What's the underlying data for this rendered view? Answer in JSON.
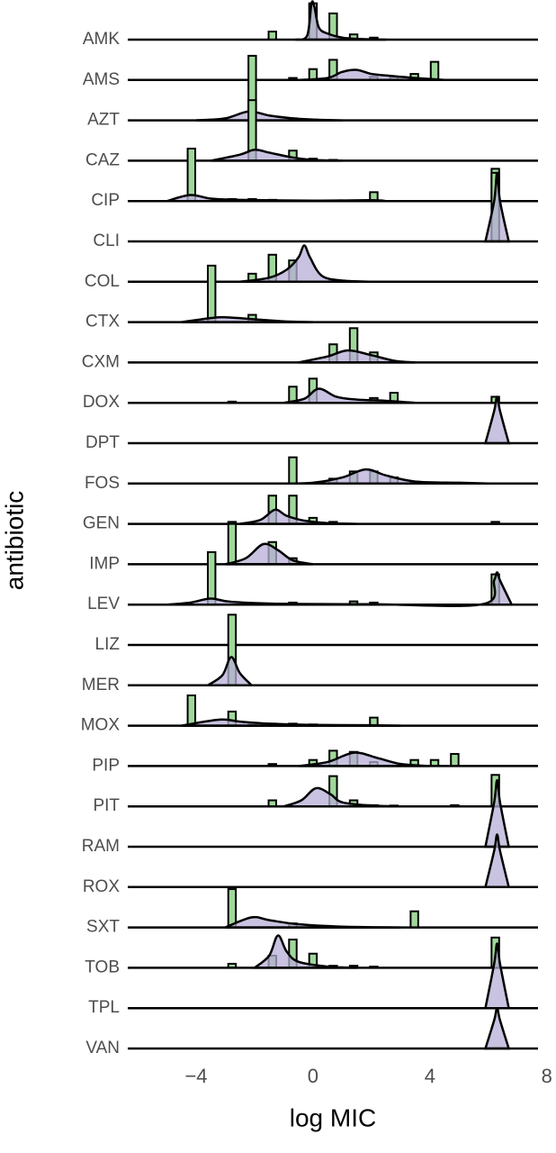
{
  "chart_data": {
    "type": "ridgeline",
    "x_label": "log MIC",
    "y_label": "antibiotic",
    "xlim": [
      -6.34,
      7.7
    ],
    "xticks": [
      {
        "value": -4,
        "label": "−4"
      },
      0,
      4,
      8
    ],
    "bar_color": "#9fd89a",
    "density_color": "#b7aed6",
    "rows": [
      {
        "name": "AMK",
        "bars": {
          "x": [
            -1.39,
            0,
            0.69,
            1.39,
            2.08
          ],
          "values": [
            0.2,
            0.9,
            0.65,
            0.13,
            0.05
          ]
        },
        "density": {
          "x": [
            -0.6,
            -0.2,
            -0.05,
            0.05,
            0.2,
            0.5,
            1,
            1.5,
            2.5
          ],
          "values": [
            0,
            0.1,
            0.9,
            0.8,
            0.3,
            0.15,
            0.05,
            0.02,
            0
          ]
        }
      },
      {
        "name": "AMS",
        "bars": {
          "x": [
            -0.69,
            0,
            0.69,
            2.08,
            2.77,
            3.47,
            4.16
          ],
          "values": [
            0.05,
            0.27,
            0.5,
            0.08,
            0.08,
            0.15,
            0.45
          ]
        },
        "density": {
          "x": [
            -0.5,
            0.5,
            1,
            1.5,
            2,
            2.7,
            3.5,
            4.5
          ],
          "values": [
            0,
            0.05,
            0.2,
            0.25,
            0.15,
            0.1,
            0.05,
            0
          ]
        }
      },
      {
        "name": "AZT",
        "bars": {
          "x": [
            -2.08,
            -0.69,
            0
          ],
          "values": [
            1.6,
            0.05,
            0.02
          ]
        },
        "density": {
          "x": [
            -4,
            -3,
            -2.2,
            -1.5,
            -0.7,
            0,
            1
          ],
          "values": [
            0,
            0.05,
            0.22,
            0.12,
            0.05,
            0.02,
            0
          ]
        }
      },
      {
        "name": "CAZ",
        "bars": {
          "x": [
            -2.08,
            -0.69,
            0,
            0.69
          ],
          "values": [
            1.5,
            0.25,
            0.05,
            0.02
          ]
        },
        "density": {
          "x": [
            -3.5,
            -2.5,
            -2,
            -1.5,
            -0.7,
            0,
            1
          ],
          "values": [
            0,
            0.15,
            0.27,
            0.2,
            0.08,
            0.02,
            0
          ]
        }
      },
      {
        "name": "CIP",
        "bars": {
          "x": [
            -4.16,
            -2.77,
            -2.08,
            -1.39,
            2.08,
            6.24
          ],
          "values": [
            1.3,
            0.05,
            0.05,
            0.03,
            0.22,
            0.8
          ]
        },
        "density": {
          "x": [
            -5,
            -4.2,
            -3.5,
            -2.5,
            0,
            2,
            2.5
          ],
          "values": [
            0,
            0.15,
            0.06,
            0.03,
            0.01,
            0.02,
            0
          ]
        }
      },
      {
        "name": "CLI",
        "bars": {
          "x": [
            6.24
          ],
          "values": [
            1.7
          ]
        },
        "density": {
          "x": [
            5.9,
            6.2,
            6.3,
            6.4,
            6.7
          ],
          "values": [
            0,
            1,
            1.7,
            1,
            0
          ]
        }
      },
      {
        "name": "COL",
        "bars": {
          "x": [
            -2.08,
            -1.39,
            -0.69,
            0.69
          ],
          "values": [
            0.2,
            0.67,
            0.53,
            0.03
          ]
        },
        "density": {
          "x": [
            -2.5,
            -1.5,
            -0.9,
            -0.5,
            -0.3,
            -0.1,
            0.3,
            1,
            2
          ],
          "values": [
            0,
            0.1,
            0.3,
            0.6,
            0.9,
            0.6,
            0.15,
            0.03,
            0
          ]
        }
      },
      {
        "name": "CTX",
        "bars": {
          "x": [
            -3.47,
            -2.08
          ],
          "values": [
            1.4,
            0.18
          ]
        },
        "density": {
          "x": [
            -4.5,
            -3.5,
            -3,
            -2,
            -1,
            0
          ],
          "values": [
            0,
            0.1,
            0.12,
            0.07,
            0.02,
            0
          ]
        }
      },
      {
        "name": "CXM",
        "bars": {
          "x": [
            0.69,
            1.39,
            2.08,
            2.77
          ],
          "values": [
            0.45,
            0.85,
            0.25,
            0.03
          ]
        },
        "density": {
          "x": [
            -0.5,
            0.5,
            1.2,
            2,
            2.8,
            3.5
          ],
          "values": [
            0,
            0.15,
            0.3,
            0.18,
            0.04,
            0
          ]
        }
      },
      {
        "name": "DOX",
        "bars": {
          "x": [
            -2.77,
            -0.69,
            0,
            2.08,
            2.77,
            6.24
          ],
          "values": [
            0.03,
            0.4,
            0.6,
            0.12,
            0.25,
            0.15
          ]
        },
        "density": {
          "x": [
            -1,
            -0.3,
            0.2,
            0.8,
            1.5,
            2.5,
            3.5
          ],
          "values": [
            0,
            0.1,
            0.35,
            0.15,
            0.08,
            0.05,
            0
          ]
        }
      },
      {
        "name": "DPT",
        "bars": {
          "x": [],
          "values": []
        },
        "density": {
          "x": [
            5.9,
            6.2,
            6.3,
            6.4,
            6.7
          ],
          "values": [
            0,
            0.8,
            1.15,
            0.8,
            0
          ]
        }
      },
      {
        "name": "FOS",
        "bars": {
          "x": [
            -0.69,
            0.69,
            1.39,
            2.08,
            2.77,
            3.47,
            4.16
          ],
          "values": [
            0.65,
            0.12,
            0.3,
            0.3,
            0.15,
            0.05,
            0.03
          ]
        },
        "density": {
          "x": [
            -1,
            0,
            1,
            1.8,
            2.5,
            3.5,
            5,
            6
          ],
          "values": [
            0,
            0.02,
            0.15,
            0.35,
            0.2,
            0.05,
            0.02,
            0
          ]
        }
      },
      {
        "name": "GEN",
        "bars": {
          "x": [
            -2.77,
            -1.39,
            -0.69,
            0,
            0.69,
            6.24
          ],
          "values": [
            0.05,
            0.7,
            0.7,
            0.15,
            0.05,
            0.05
          ]
        },
        "density": {
          "x": [
            -2.5,
            -1.8,
            -1.3,
            -0.9,
            -0.3,
            0.5,
            1.5
          ],
          "values": [
            0,
            0.1,
            0.35,
            0.2,
            0.08,
            0.02,
            0
          ]
        }
      },
      {
        "name": "IMP",
        "bars": {
          "x": [
            -2.77,
            -1.39,
            -0.69
          ],
          "values": [
            1.0,
            0.55,
            0.15
          ]
        },
        "density": {
          "x": [
            -3,
            -2.3,
            -1.7,
            -1.2,
            -0.7,
            0
          ],
          "values": [
            0,
            0.15,
            0.5,
            0.35,
            0.1,
            0
          ]
        }
      },
      {
        "name": "LEV",
        "bars": {
          "x": [
            -3.47,
            -0.69,
            1.39,
            2.08,
            6.24
          ],
          "values": [
            1.3,
            0.05,
            0.08,
            0.05,
            0.75
          ]
        },
        "density": {
          "x": [
            -5,
            -4.2,
            -3.5,
            -2.8,
            -1,
            2,
            5.8,
            6.2,
            6.3,
            6.4,
            6.8
          ],
          "values": [
            0,
            0.05,
            0.15,
            0.07,
            0.02,
            0.01,
            0.01,
            0.6,
            0.8,
            0.6,
            0
          ]
        }
      },
      {
        "name": "LIZ",
        "bars": {
          "x": [],
          "values": []
        },
        "density": {
          "x": [],
          "values": []
        }
      },
      {
        "name": "MER",
        "bars": {
          "x": [
            -2.77
          ],
          "values": [
            1.75
          ]
        },
        "density": {
          "x": [
            -3.6,
            -3.1,
            -2.8,
            -2.5,
            -2.1
          ],
          "values": [
            0,
            0.25,
            0.7,
            0.3,
            0
          ]
        }
      },
      {
        "name": "MOX",
        "bars": {
          "x": [
            -4.16,
            -2.77,
            -2.08,
            -1.39,
            -0.69,
            0,
            2.08
          ],
          "values": [
            0.75,
            0.35,
            0.05,
            0.05,
            0.05,
            0.03,
            0.2
          ]
        },
        "density": {
          "x": [
            -4.5,
            -3.2,
            -2.5,
            -1.5,
            0,
            2,
            3
          ],
          "values": [
            0,
            0.15,
            0.1,
            0.05,
            0.02,
            0.01,
            0
          ]
        }
      },
      {
        "name": "PIP",
        "bars": {
          "x": [
            -1.39,
            0,
            0.69,
            1.39,
            2.08,
            3.47,
            4.16,
            4.85
          ],
          "values": [
            0.05,
            0.15,
            0.38,
            0.35,
            0.1,
            0.15,
            0.15,
            0.3
          ]
        },
        "density": {
          "x": [
            -0.5,
            0.5,
            1.4,
            2.2,
            3,
            4
          ],
          "values": [
            0,
            0.1,
            0.33,
            0.2,
            0.05,
            0
          ]
        }
      },
      {
        "name": "PIT",
        "bars": {
          "x": [
            -1.39,
            0.69,
            1.39,
            2.08,
            2.77,
            4.85,
            6.24
          ],
          "values": [
            0.15,
            0.75,
            0.15,
            0.03,
            0.02,
            0.03,
            0.78
          ]
        },
        "density": {
          "x": [
            -1,
            -0.4,
            0.1,
            0.6,
            1,
            2,
            3
          ],
          "values": [
            0,
            0.15,
            0.45,
            0.3,
            0.1,
            0.02,
            0
          ]
        }
      },
      {
        "name": "RAM",
        "bars": {
          "x": [],
          "values": []
        },
        "density": {
          "x": [
            5.9,
            6.2,
            6.3,
            6.4,
            6.7
          ],
          "values": [
            0,
            1.1,
            1.65,
            1.1,
            0
          ]
        }
      },
      {
        "name": "ROX",
        "bars": {
          "x": [],
          "values": []
        },
        "density": {
          "x": [
            5.9,
            6.2,
            6.3,
            6.4,
            6.7
          ],
          "values": [
            0,
            0.9,
            1.3,
            0.9,
            0
          ]
        }
      },
      {
        "name": "SXT",
        "bars": {
          "x": [
            -2.77,
            -0.69,
            3.47
          ],
          "values": [
            0.95,
            0.1,
            0.4
          ]
        },
        "density": {
          "x": [
            -3,
            -2.1,
            -1.5,
            -0.5,
            1,
            3
          ],
          "values": [
            0,
            0.25,
            0.18,
            0.08,
            0.02,
            0
          ]
        }
      },
      {
        "name": "TOB",
        "bars": {
          "x": [
            -2.77,
            -1.39,
            -0.69,
            0,
            0.69,
            1.39,
            2.08,
            6.24
          ],
          "values": [
            0.1,
            0.3,
            0.7,
            0.35,
            0.05,
            0.05,
            0.03,
            0.75
          ]
        },
        "density": {
          "x": [
            -2,
            -1.5,
            -1.2,
            -0.9,
            -0.5,
            0.5,
            1.5
          ],
          "values": [
            0,
            0.3,
            0.8,
            0.4,
            0.15,
            0.03,
            0
          ]
        }
      },
      {
        "name": "TPL",
        "bars": {
          "x": [],
          "values": []
        },
        "density": {
          "x": [
            5.9,
            6.2,
            6.3,
            6.4,
            6.7
          ],
          "values": [
            0,
            1.1,
            1.6,
            1.1,
            0
          ]
        }
      },
      {
        "name": "VAN",
        "bars": {
          "x": [],
          "values": []
        },
        "density": {
          "x": [
            5.9,
            6.2,
            6.3,
            6.4,
            6.7
          ],
          "values": [
            0,
            0.7,
            1.0,
            0.7,
            0
          ]
        }
      }
    ]
  }
}
